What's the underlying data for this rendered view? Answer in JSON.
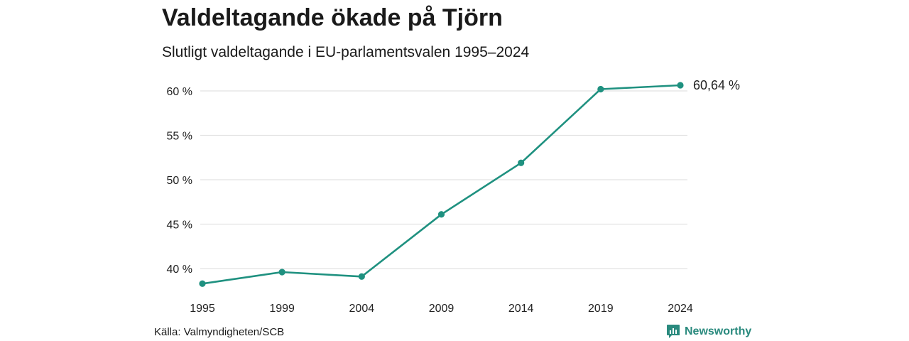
{
  "title": "Valdeltagande ökade på Tjörn",
  "subtitle": "Slutligt valdeltagande i EU-parlamentsvalen 1995–2024",
  "source": "Källa: Valmyndigheten/SCB",
  "brand": {
    "name": "Newsworthy",
    "icon": "newsworthy-logo-icon"
  },
  "colors": {
    "line": "#1f9180",
    "grid": "#e2e2e2",
    "brand": "#2a8a7e"
  },
  "chart_data": {
    "type": "line",
    "x": [
      "1995",
      "1999",
      "2004",
      "2009",
      "2014",
      "2019",
      "2024"
    ],
    "series": [
      {
        "values": [
          38.3,
          39.6,
          39.1,
          46.1,
          51.9,
          60.2,
          60.64
        ]
      }
    ],
    "yticks": [
      40,
      45,
      50,
      55,
      60
    ],
    "ytick_labels": [
      "40 %",
      "45 %",
      "50 %",
      "55 %",
      "60 %"
    ],
    "xlabel": "",
    "ylabel": "",
    "end_label": "60,64 %",
    "grid": true,
    "legend": "none"
  }
}
